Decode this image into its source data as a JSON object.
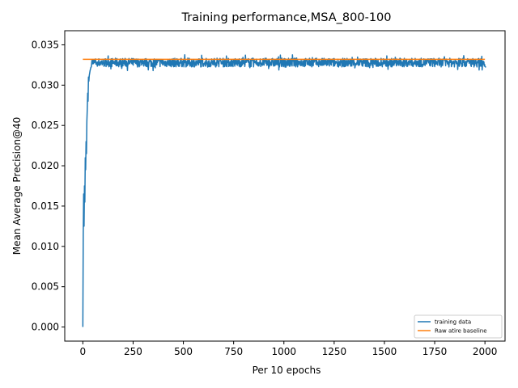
{
  "chart_data": {
    "type": "line",
    "title": "Training performance,MSA_800-100",
    "xlabel": "Per 10 epochs",
    "ylabel": "Mean Average Precision@40",
    "xlim": [
      -90,
      2100
    ],
    "ylim": [
      -0.00175,
      0.03675
    ],
    "xticks": [
      0,
      250,
      500,
      750,
      1000,
      1250,
      1500,
      1750,
      2000
    ],
    "xtick_labels": [
      "0",
      "250",
      "500",
      "750",
      "1000",
      "1250",
      "1500",
      "1750",
      "2000"
    ],
    "yticks": [
      0.0,
      0.005,
      0.01,
      0.015,
      0.02,
      0.025,
      0.03,
      0.035
    ],
    "ytick_labels": [
      "0.000",
      "0.005",
      "0.010",
      "0.015",
      "0.020",
      "0.025",
      "0.030",
      "0.035"
    ],
    "grid": false,
    "legend_position": "lower-right",
    "series": [
      {
        "name": "training data",
        "color": "#1f77b4",
        "x": [
          0,
          2,
          4,
          6,
          8,
          10,
          12,
          14,
          16,
          18,
          20,
          22,
          24,
          26,
          28,
          30,
          32,
          34,
          36,
          38,
          40,
          45,
          50,
          60,
          70,
          80,
          100,
          150,
          200,
          300,
          400,
          500,
          600,
          700,
          800,
          900,
          1000,
          1100,
          1200,
          1300,
          1400,
          1500,
          1600,
          1700,
          1800,
          1900,
          2000,
          2005
        ],
        "y": [
          0.0,
          0.0115,
          0.0165,
          0.0125,
          0.0175,
          0.0155,
          0.021,
          0.0195,
          0.023,
          0.0215,
          0.0255,
          0.027,
          0.029,
          0.028,
          0.031,
          0.0305,
          0.0312,
          0.0315,
          0.0318,
          0.032,
          0.0322,
          0.0325,
          0.0326,
          0.0327,
          0.0327,
          0.0328,
          0.0328,
          0.0328,
          0.0328,
          0.0328,
          0.0328,
          0.0328,
          0.0328,
          0.0328,
          0.0328,
          0.0328,
          0.0328,
          0.0328,
          0.0328,
          0.0328,
          0.0328,
          0.0328,
          0.0328,
          0.0328,
          0.0328,
          0.0328,
          0.0328,
          0.0322
        ],
        "noise_band": [
          0.0318,
          0.0338
        ]
      },
      {
        "name": "Raw atire baseline",
        "color": "#ff7f0e",
        "x": [
          0,
          2000
        ],
        "y": [
          0.0332,
          0.0332
        ]
      }
    ]
  }
}
